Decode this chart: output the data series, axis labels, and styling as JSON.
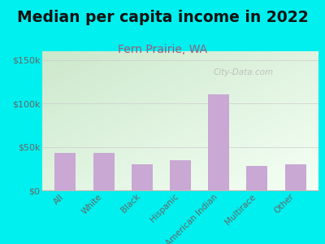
{
  "title": "Median per capita income in 2022",
  "subtitle": "Fern Prairie, WA",
  "categories": [
    "All",
    "White",
    "Black",
    "Hispanic",
    "American Indian",
    "Multirace",
    "Other"
  ],
  "values": [
    43000,
    43000,
    30000,
    35000,
    110000,
    28000,
    30000
  ],
  "bar_color": "#c9a8d4",
  "title_fontsize": 13.5,
  "subtitle_fontsize": 10,
  "subtitle_color": "#9b5a7a",
  "title_color": "#111111",
  "tick_label_color": "#666666",
  "background_outer": "#00efef",
  "ylim": [
    0,
    160000
  ],
  "yticks": [
    0,
    50000,
    100000,
    150000
  ],
  "ytick_labels": [
    "$0",
    "$50k",
    "$100k",
    "$150k"
  ],
  "watermark": "City-Data.com",
  "grad_top_left": "#cce8cc",
  "grad_bottom_right": "#f5fff5"
}
